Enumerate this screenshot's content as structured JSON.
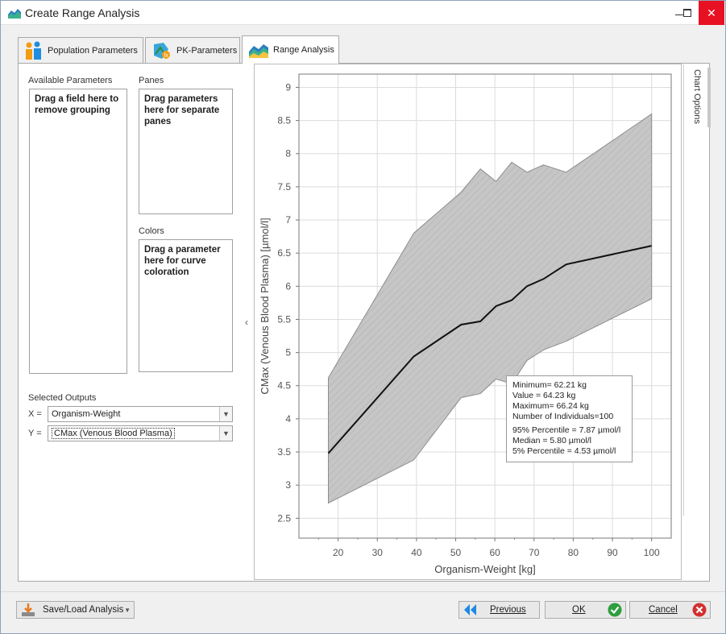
{
  "window": {
    "title": "Create Range Analysis",
    "close_glyph": "✕"
  },
  "tabs": [
    {
      "label": "Population Parameters",
      "icon": "population-icon"
    },
    {
      "label": "PK-Parameters",
      "icon": "pk-parameters-icon"
    },
    {
      "label": "Range Analysis",
      "icon": "range-analysis-icon",
      "active": true
    }
  ],
  "left": {
    "available_label": "Available Parameters",
    "available_hint": "Drag a field here to remove grouping",
    "panes_label": "Panes",
    "panes_hint": "Drag parameters here for separate panes",
    "colors_label": "Colors",
    "colors_hint": "Drag a parameter here for curve coloration",
    "selected_outputs_label": "Selected Outputs",
    "x_label": "X =",
    "x_value": "Organism-Weight",
    "y_label": "Y =",
    "y_value": "CMax (Venous Blood Plasma)"
  },
  "chart_options_label": "Chart Options",
  "chart_data": {
    "type": "line",
    "xlabel": "Organism-Weight [kg]",
    "ylabel": "CMax (Venous Blood Plasma) [µmol/l]",
    "xlim": [
      10,
      105
    ],
    "ylim": [
      2.2,
      9.2
    ],
    "xticks": [
      20,
      30,
      40,
      50,
      60,
      70,
      80,
      90,
      100
    ],
    "yticks": [
      2.5,
      3,
      3.5,
      4,
      4.5,
      5,
      5.5,
      6,
      6.5,
      7,
      7.5,
      8,
      8.5,
      9
    ],
    "colors": {
      "band": "#c8c8c8",
      "band_edge": "#8c8c8c",
      "median": "#111111"
    },
    "series": [
      {
        "name": "Median",
        "x": [
          17.5,
          39.3,
          51.4,
          56.3,
          60.3,
          64.3,
          68.2,
          72.4,
          78.2,
          100
        ],
        "y": [
          3.48,
          4.94,
          5.42,
          5.47,
          5.7,
          5.79,
          6.0,
          6.11,
          6.33,
          6.61
        ]
      },
      {
        "name": "95% Percentile",
        "x": [
          17.5,
          39.3,
          51.4,
          56.3,
          60.3,
          64.3,
          68.2,
          72.4,
          78.2,
          100
        ],
        "y": [
          4.62,
          6.8,
          7.42,
          7.77,
          7.58,
          7.87,
          7.72,
          7.83,
          7.72,
          8.6
        ]
      },
      {
        "name": "5% Percentile",
        "x": [
          17.5,
          39.3,
          51.4,
          56.3,
          60.3,
          64.3,
          68.2,
          72.4,
          78.2,
          100
        ],
        "y": [
          2.73,
          3.38,
          4.32,
          4.38,
          4.6,
          4.53,
          4.88,
          5.04,
          5.17,
          5.81
        ]
      }
    ],
    "tooltip": {
      "lines_a": [
        "Minimum= 62.21 kg",
        "Value = 64.23 kg",
        "Maximum= 66.24 kg",
        "Number of Individuals=100"
      ],
      "lines_b": [
        "95% Percentile = 7.87 µmol/l",
        "Median = 5.80 µmol/l",
        "5% Percentile = 4.53 µmol/l"
      ]
    }
  },
  "bottom": {
    "save_load": "Save/Load Analysis",
    "previous": "Previous",
    "ok": "OK",
    "cancel": "Cancel"
  }
}
